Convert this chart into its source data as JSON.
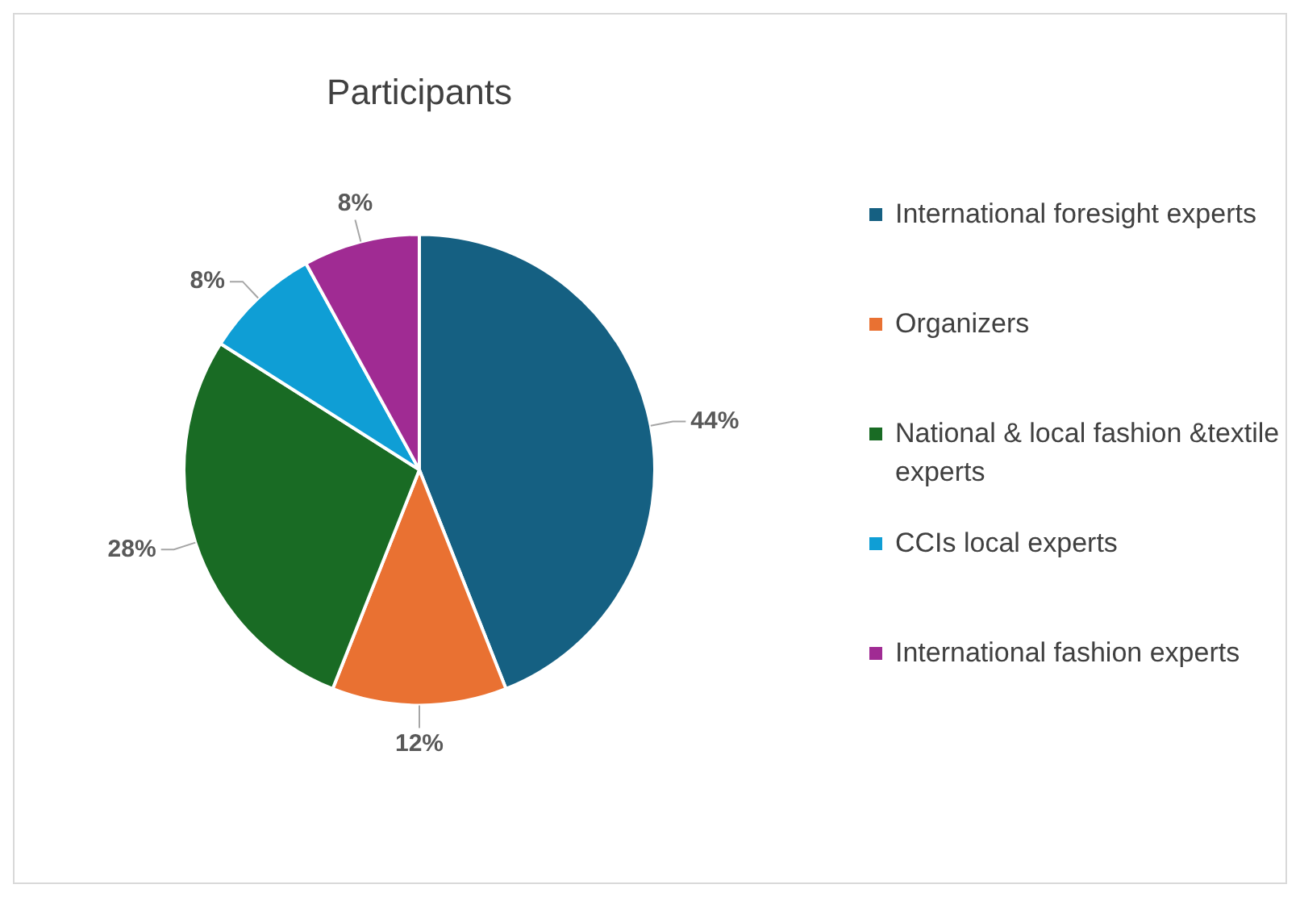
{
  "chart_data": {
    "type": "pie",
    "title": "Participants",
    "categories": [
      "International foresight experts",
      "Organizers",
      "National & local fashion &textile experts",
      "CCIs local experts",
      "International fashion experts"
    ],
    "values": [
      44,
      12,
      28,
      8,
      8
    ],
    "colors": [
      "#156082",
      "#e97132",
      "#196b24",
      "#0f9ed5",
      "#a02b93"
    ],
    "value_labels": [
      "44%",
      "12%",
      "28%",
      "8%",
      "8%"
    ],
    "legend": "right"
  }
}
